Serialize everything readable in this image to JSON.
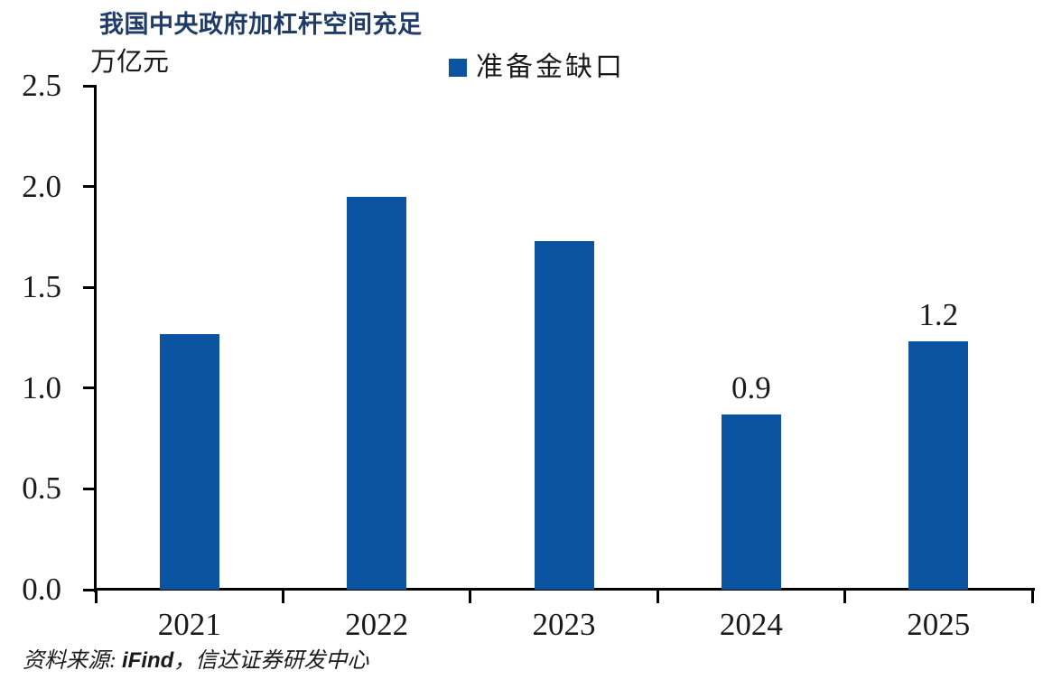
{
  "chart_data": {
    "type": "bar",
    "title": "我国中央政府加杠杆空间充足",
    "ylabel": "万亿元",
    "xlabel": "",
    "categories": [
      "2021",
      "2022",
      "2023",
      "2024",
      "2025"
    ],
    "series": [
      {
        "name": "准备金缺口",
        "values": [
          1.27,
          1.95,
          1.73,
          0.87,
          1.23
        ]
      }
    ],
    "data_labels": [
      "",
      "",
      "",
      "0.9",
      "1.2"
    ],
    "ylim": [
      0,
      2.5
    ],
    "ytick_labels": [
      "0.0",
      "0.5",
      "1.0",
      "1.5",
      "2.0",
      "2.5"
    ],
    "grid": false,
    "legend_position": "top-center",
    "bar_color": "#0a54a1"
  },
  "source": {
    "prefix": "资料来源: ",
    "brand": "iFind",
    "suffix": "，信达证券研发中心"
  },
  "colors": {
    "title": "#1f3b67",
    "bar": "#0a54a1",
    "axis": "#000000",
    "text": "#1a1a1a"
  }
}
